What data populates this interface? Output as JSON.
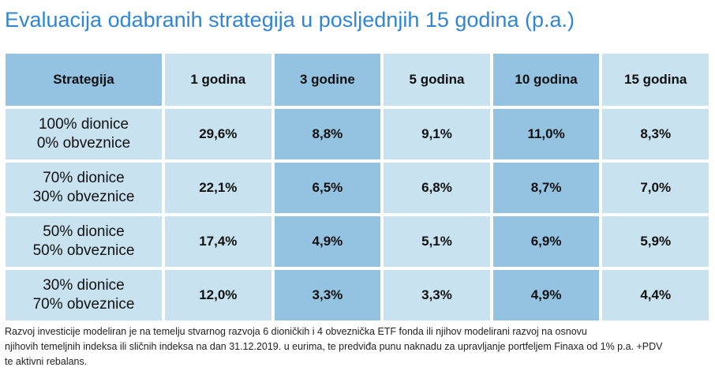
{
  "title": "Evaluacija odabranih strategija u posljednjih 15 godina (p.a.)",
  "table": {
    "header": [
      "Strategija",
      "1 godina",
      "3 godine",
      "5 godina",
      "10 godina",
      "15 godina"
    ],
    "rows": [
      {
        "strategy": [
          "100% dionice",
          "0% obveznice"
        ],
        "values": [
          "29,6%",
          "8,8%",
          "9,1%",
          "11,0%",
          "8,3%"
        ]
      },
      {
        "strategy": [
          "70% dionice",
          "30% obveznice"
        ],
        "values": [
          "22,1%",
          "6,5%",
          "6,8%",
          "8,7%",
          "7,0%"
        ]
      },
      {
        "strategy": [
          "50% dionice",
          "50% obveznice"
        ],
        "values": [
          "17,4%",
          "4,9%",
          "5,1%",
          "6,9%",
          "5,9%"
        ]
      },
      {
        "strategy": [
          "30% dionice",
          "70% obveznice"
        ],
        "values": [
          "12,0%",
          "3,3%",
          "3,3%",
          "4,9%",
          "4,4%"
        ]
      }
    ]
  },
  "footnote": [
    "Razvoj investicije modeliran je na temelju stvarnog razvoja 6 dioničkih i 4 obveznička ETF fonda ili njihov modelirani razvoj na osnovu",
    "njihovih temeljnih indeksa ili sličnih indeksa na dan 31.12.2019. u eurima, te predviđa punu naknadu za upravljanje portfeljem Finaxa od 1% p.a. +PDV",
    "te aktivni rebalans."
  ]
}
